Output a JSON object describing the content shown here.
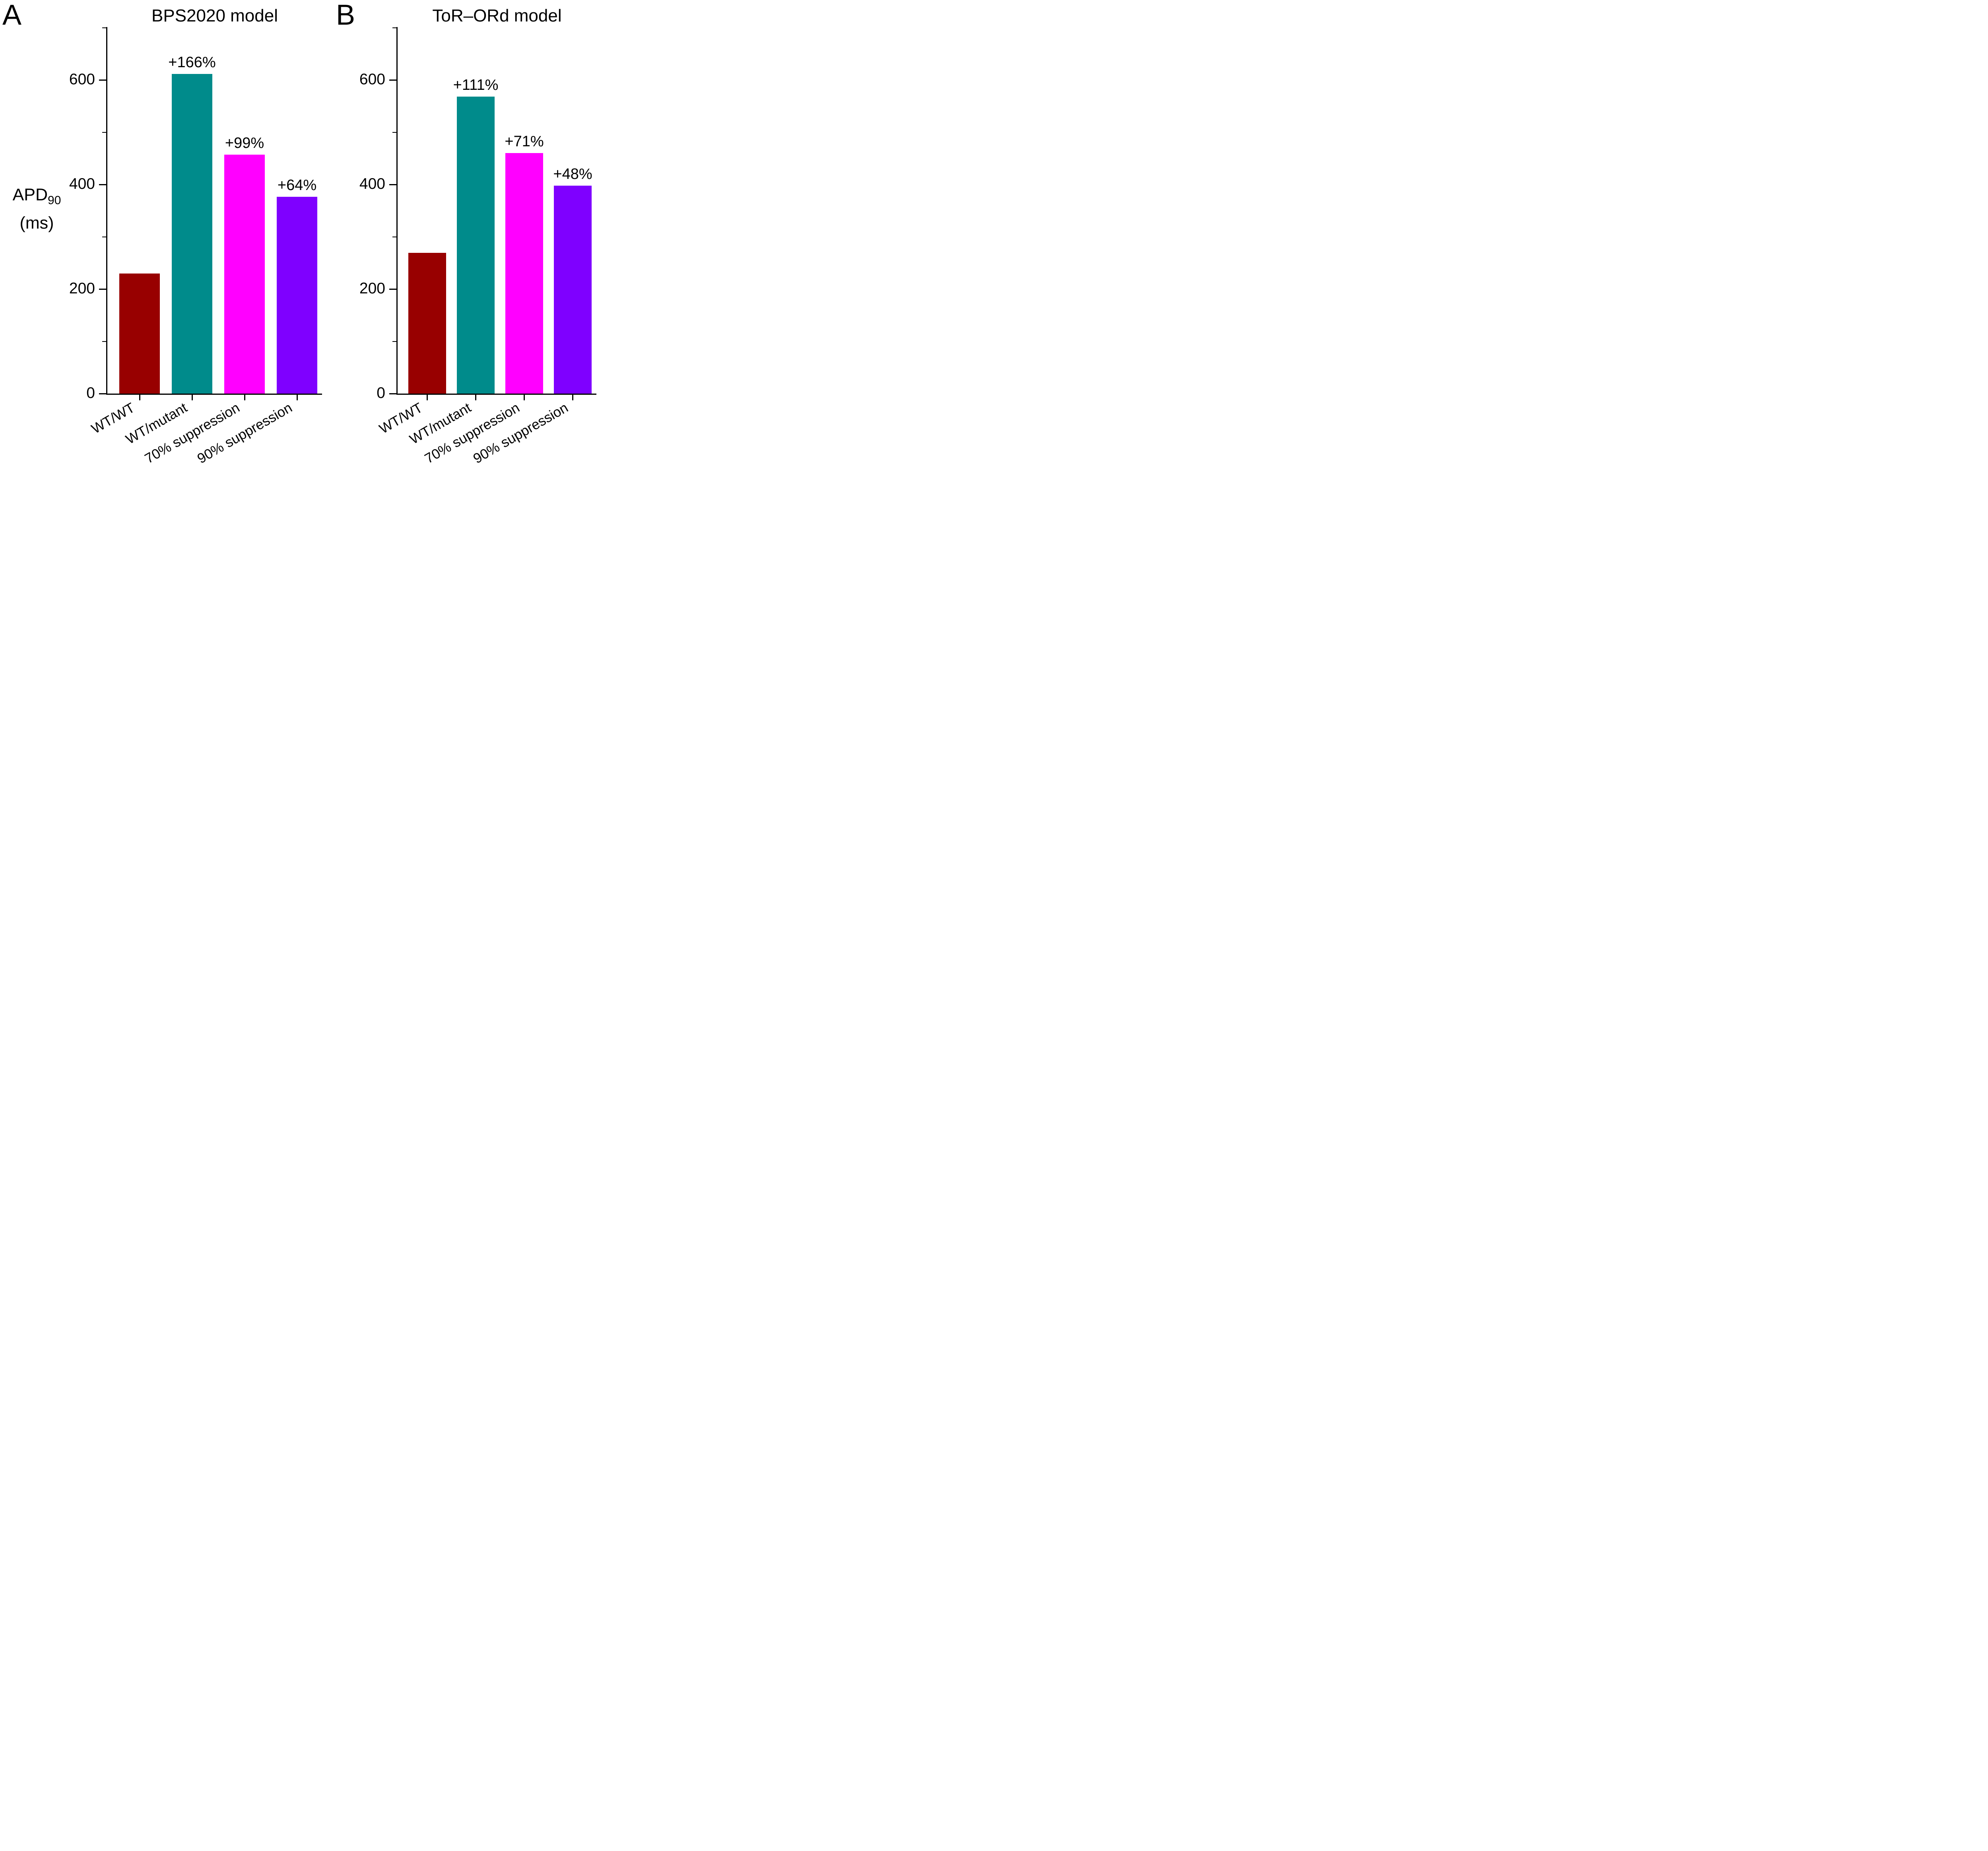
{
  "figure": {
    "ylabel_main": "APD",
    "ylabel_sub": "90",
    "ylabel_units": "(ms)"
  },
  "chart_data": [
    {
      "type": "bar",
      "panel_letter": "A",
      "title": "BPS2020 model",
      "ylabel": "APD90 (ms)",
      "ylim": [
        0,
        700
      ],
      "yticks": [
        0,
        200,
        400,
        600
      ],
      "yticks_minor": [
        100,
        300,
        500,
        700
      ],
      "categories": [
        "WT/WT",
        "WT/mutant",
        "70% suppression",
        "90% suppression"
      ],
      "values": [
        230,
        612,
        457,
        377
      ],
      "bar_labels": [
        "",
        "+166%",
        "+99%",
        "+64%"
      ],
      "colors": [
        "#980000",
        "#008B8B",
        "#FF00FF",
        "#7F00FF"
      ],
      "grid": false,
      "legend": "none"
    },
    {
      "type": "bar",
      "panel_letter": "B",
      "title": "ToR–ORd model",
      "ylabel": "APD90 (ms)",
      "ylim": [
        0,
        700
      ],
      "yticks": [
        0,
        200,
        400,
        600
      ],
      "yticks_minor": [
        100,
        300,
        500,
        700
      ],
      "categories": [
        "WT/WT",
        "WT/mutant",
        "70% suppression",
        "90% suppression"
      ],
      "values": [
        269,
        568,
        460,
        398
      ],
      "bar_labels": [
        "",
        "+111%",
        "+71%",
        "+48%"
      ],
      "colors": [
        "#980000",
        "#008B8B",
        "#FF00FF",
        "#7F00FF"
      ],
      "grid": false,
      "legend": "none"
    }
  ]
}
